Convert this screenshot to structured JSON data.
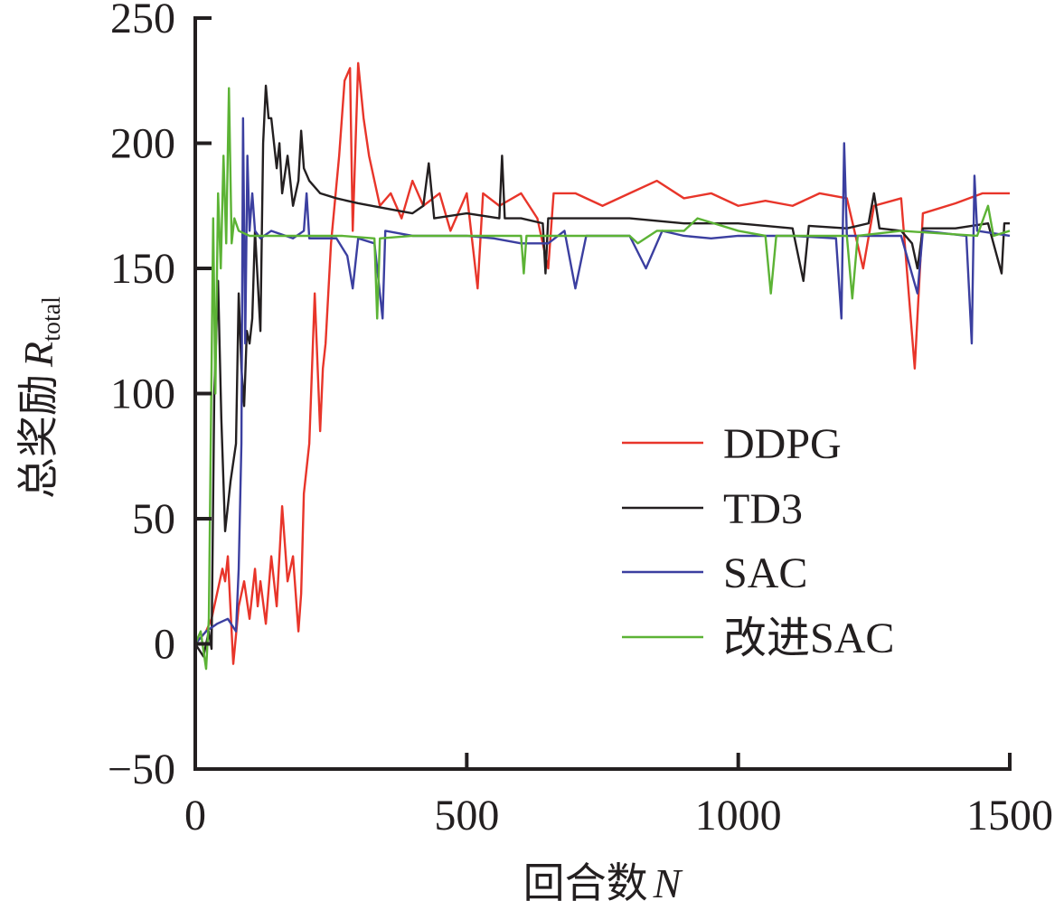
{
  "chart_data": {
    "type": "line",
    "title": "",
    "xlabel": "回合数",
    "xlabel_var": "N",
    "ylabel": "总奖励",
    "ylabel_var": "R",
    "ylabel_sub": "total",
    "xlim": [
      0,
      1500
    ],
    "ylim": [
      -50,
      250
    ],
    "xticks": [
      0,
      500,
      1000,
      1500
    ],
    "yticks": [
      -50,
      0,
      50,
      100,
      150,
      200,
      250
    ],
    "ytick_labels": [
      "−50",
      "0",
      "50",
      "100",
      "150",
      "200",
      "250"
    ],
    "grid": false,
    "legend_position": "center-right",
    "series": [
      {
        "name": "DDPG",
        "color": "#e8352a",
        "points": [
          [
            0,
            0
          ],
          [
            20,
            5
          ],
          [
            30,
            10
          ],
          [
            40,
            20
          ],
          [
            50,
            30
          ],
          [
            55,
            25
          ],
          [
            60,
            35
          ],
          [
            70,
            -8
          ],
          [
            80,
            15
          ],
          [
            90,
            25
          ],
          [
            100,
            10
          ],
          [
            110,
            30
          ],
          [
            115,
            15
          ],
          [
            120,
            25
          ],
          [
            130,
            8
          ],
          [
            140,
            35
          ],
          [
            150,
            15
          ],
          [
            160,
            55
          ],
          [
            170,
            25
          ],
          [
            180,
            35
          ],
          [
            190,
            5
          ],
          [
            195,
            20
          ],
          [
            200,
            60
          ],
          [
            210,
            80
          ],
          [
            220,
            140
          ],
          [
            230,
            85
          ],
          [
            235,
            110
          ],
          [
            240,
            120
          ],
          [
            250,
            160
          ],
          [
            265,
            195
          ],
          [
            275,
            225
          ],
          [
            285,
            230
          ],
          [
            290,
            165
          ],
          [
            300,
            232
          ],
          [
            310,
            210
          ],
          [
            320,
            195
          ],
          [
            340,
            175
          ],
          [
            360,
            180
          ],
          [
            380,
            170
          ],
          [
            400,
            185
          ],
          [
            420,
            175
          ],
          [
            450,
            180
          ],
          [
            470,
            165
          ],
          [
            500,
            180
          ],
          [
            520,
            142
          ],
          [
            530,
            180
          ],
          [
            560,
            175
          ],
          [
            600,
            180
          ],
          [
            630,
            170
          ],
          [
            650,
            150
          ],
          [
            660,
            180
          ],
          [
            700,
            180
          ],
          [
            750,
            175
          ],
          [
            800,
            180
          ],
          [
            850,
            185
          ],
          [
            900,
            178
          ],
          [
            950,
            180
          ],
          [
            1000,
            175
          ],
          [
            1050,
            177
          ],
          [
            1100,
            175
          ],
          [
            1150,
            180
          ],
          [
            1200,
            178
          ],
          [
            1230,
            150
          ],
          [
            1250,
            175
          ],
          [
            1300,
            178
          ],
          [
            1325,
            110
          ],
          [
            1340,
            172
          ],
          [
            1400,
            176
          ],
          [
            1450,
            180
          ],
          [
            1500,
            180
          ]
        ]
      },
      {
        "name": "TD3",
        "color": "#231f20",
        "points": [
          [
            0,
            0
          ],
          [
            15,
            -5
          ],
          [
            25,
            5
          ],
          [
            30,
            -2
          ],
          [
            35,
            100
          ],
          [
            42,
            145
          ],
          [
            48,
            90
          ],
          [
            55,
            45
          ],
          [
            65,
            65
          ],
          [
            75,
            80
          ],
          [
            80,
            140
          ],
          [
            85,
            110
          ],
          [
            90,
            95
          ],
          [
            95,
            125
          ],
          [
            100,
            120
          ],
          [
            105,
            130
          ],
          [
            110,
            165
          ],
          [
            115,
            145
          ],
          [
            120,
            125
          ],
          [
            125,
            200
          ],
          [
            130,
            223
          ],
          [
            135,
            210
          ],
          [
            140,
            210
          ],
          [
            150,
            190
          ],
          [
            155,
            200
          ],
          [
            160,
            180
          ],
          [
            170,
            195
          ],
          [
            180,
            175
          ],
          [
            190,
            185
          ],
          [
            195,
            205
          ],
          [
            200,
            190
          ],
          [
            210,
            185
          ],
          [
            230,
            180
          ],
          [
            260,
            178
          ],
          [
            300,
            176
          ],
          [
            350,
            174
          ],
          [
            400,
            172
          ],
          [
            420,
            175
          ],
          [
            430,
            192
          ],
          [
            440,
            170
          ],
          [
            500,
            172
          ],
          [
            560,
            170
          ],
          [
            565,
            195
          ],
          [
            570,
            170
          ],
          [
            600,
            170
          ],
          [
            640,
            168
          ],
          [
            645,
            148
          ],
          [
            650,
            170
          ],
          [
            700,
            170
          ],
          [
            800,
            170
          ],
          [
            900,
            168
          ],
          [
            1000,
            168
          ],
          [
            1100,
            166
          ],
          [
            1120,
            145
          ],
          [
            1130,
            167
          ],
          [
            1200,
            166
          ],
          [
            1240,
            168
          ],
          [
            1250,
            180
          ],
          [
            1260,
            166
          ],
          [
            1300,
            165
          ],
          [
            1320,
            160
          ],
          [
            1330,
            150
          ],
          [
            1340,
            166
          ],
          [
            1400,
            166
          ],
          [
            1460,
            168
          ],
          [
            1485,
            148
          ],
          [
            1490,
            168
          ],
          [
            1500,
            168
          ]
        ]
      },
      {
        "name": "SAC",
        "color": "#3b3fa0",
        "points": [
          [
            0,
            0
          ],
          [
            20,
            5
          ],
          [
            40,
            8
          ],
          [
            60,
            10
          ],
          [
            75,
            5
          ],
          [
            80,
            30
          ],
          [
            85,
            80
          ],
          [
            88,
            210
          ],
          [
            92,
            120
          ],
          [
            96,
            195
          ],
          [
            100,
            165
          ],
          [
            105,
            180
          ],
          [
            110,
            165
          ],
          [
            120,
            162
          ],
          [
            140,
            165
          ],
          [
            180,
            162
          ],
          [
            200,
            165
          ],
          [
            205,
            180
          ],
          [
            210,
            162
          ],
          [
            260,
            162
          ],
          [
            280,
            155
          ],
          [
            290,
            142
          ],
          [
            300,
            162
          ],
          [
            330,
            160
          ],
          [
            345,
            130
          ],
          [
            350,
            165
          ],
          [
            400,
            163
          ],
          [
            500,
            163
          ],
          [
            550,
            162
          ],
          [
            600,
            160
          ],
          [
            650,
            160
          ],
          [
            680,
            165
          ],
          [
            700,
            142
          ],
          [
            720,
            163
          ],
          [
            800,
            163
          ],
          [
            830,
            150
          ],
          [
            860,
            165
          ],
          [
            900,
            163
          ],
          [
            950,
            162
          ],
          [
            1000,
            163
          ],
          [
            1100,
            163
          ],
          [
            1180,
            162
          ],
          [
            1190,
            130
          ],
          [
            1195,
            200
          ],
          [
            1200,
            163
          ],
          [
            1300,
            163
          ],
          [
            1330,
            140
          ],
          [
            1340,
            165
          ],
          [
            1420,
            163
          ],
          [
            1430,
            120
          ],
          [
            1435,
            187
          ],
          [
            1440,
            165
          ],
          [
            1500,
            163
          ]
        ]
      },
      {
        "name": "改进SAC",
        "color": "#5cb335",
        "points": [
          [
            0,
            0
          ],
          [
            10,
            5
          ],
          [
            20,
            -10
          ],
          [
            25,
            10
          ],
          [
            33,
            170
          ],
          [
            37,
            100
          ],
          [
            42,
            180
          ],
          [
            47,
            150
          ],
          [
            52,
            195
          ],
          [
            57,
            160
          ],
          [
            62,
            222
          ],
          [
            67,
            160
          ],
          [
            72,
            170
          ],
          [
            80,
            165
          ],
          [
            100,
            163
          ],
          [
            200,
            163
          ],
          [
            270,
            163
          ],
          [
            330,
            162
          ],
          [
            335,
            130
          ],
          [
            340,
            162
          ],
          [
            400,
            163
          ],
          [
            600,
            163
          ],
          [
            605,
            148
          ],
          [
            610,
            163
          ],
          [
            800,
            163
          ],
          [
            815,
            160
          ],
          [
            850,
            165
          ],
          [
            900,
            165
          ],
          [
            925,
            170
          ],
          [
            1000,
            165
          ],
          [
            1050,
            163
          ],
          [
            1060,
            140
          ],
          [
            1070,
            163
          ],
          [
            1200,
            163
          ],
          [
            1210,
            138
          ],
          [
            1220,
            163
          ],
          [
            1300,
            165
          ],
          [
            1440,
            163
          ],
          [
            1460,
            175
          ],
          [
            1470,
            163
          ],
          [
            1500,
            165
          ]
        ]
      }
    ]
  }
}
